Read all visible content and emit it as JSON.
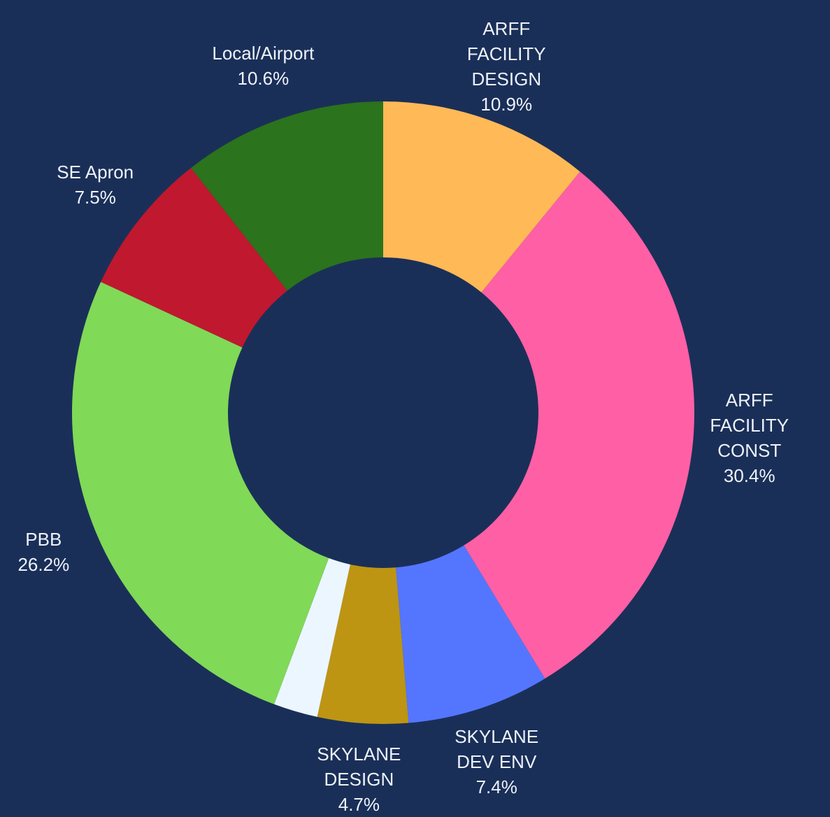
{
  "chart_data": {
    "type": "donut",
    "categories": [
      "ARFF FACILITY DESIGN",
      "ARFF FACILITY CONST",
      "SKYLANE DEV ENV",
      "SKYLANE DESIGN",
      null,
      "PBB",
      "SE Apron",
      "Local/Airport"
    ],
    "values": [
      10.9,
      30.4,
      7.4,
      4.7,
      2.3,
      26.2,
      7.5,
      10.6
    ],
    "value_labels": [
      "10.9%",
      "30.4%",
      "7.4%",
      "4.7%",
      null,
      "26.2%",
      "7.5%",
      "10.6%"
    ],
    "colors": [
      "#ffb957",
      "#ff5fa5",
      "#5476ff",
      "#bd9512",
      "#ecf6ff",
      "#80d957",
      "#c0182f",
      "#2b731c"
    ]
  }
}
